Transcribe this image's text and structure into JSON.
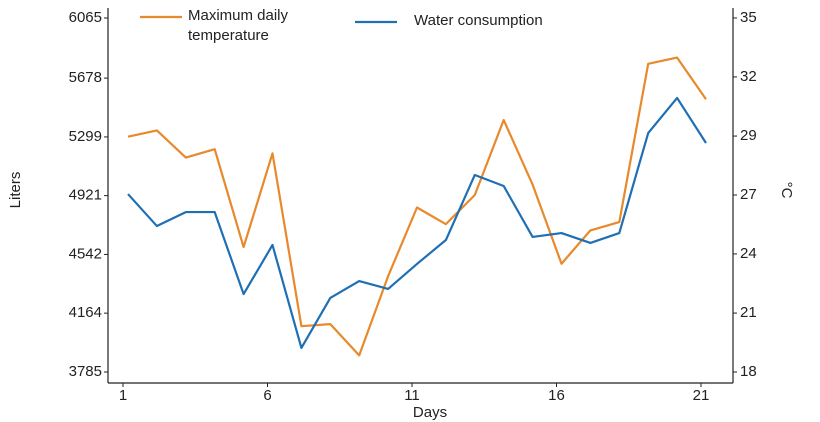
{
  "chart_data": {
    "type": "line",
    "x_label": "Days",
    "y_label": "Liters",
    "y2_label": "°C",
    "x": [
      1,
      2,
      3,
      4,
      5,
      6,
      7,
      8,
      9,
      10,
      11,
      12,
      13,
      14,
      15,
      16,
      17,
      18,
      19,
      20,
      21
    ],
    "xlim": [
      1,
      21
    ],
    "xticks": [
      1,
      6,
      11,
      16,
      21
    ],
    "ylim": [
      3785,
      6065
    ],
    "yticks": [
      3785,
      4164,
      4542,
      4921,
      5299,
      5678,
      6065
    ],
    "y2lim": [
      18,
      35
    ],
    "y2ticks": [
      18,
      {
        "value": 20.83,
        "label": "21"
      },
      {
        "value": 23.67,
        "label": "24"
      },
      {
        "value": 26.5,
        "label": "27"
      },
      {
        "value": 29.33,
        "label": "29"
      },
      {
        "value": 32.17,
        "label": "32"
      },
      35
    ],
    "grid": false,
    "series": [
      {
        "name": "Maximum daily temperature",
        "color": "#e8892b",
        "axis": "y2",
        "values": [
          29.3,
          29.6,
          28.3,
          28.7,
          24.0,
          28.5,
          20.2,
          20.3,
          18.8,
          22.6,
          25.9,
          25.1,
          26.5,
          30.1,
          27.0,
          23.2,
          24.8,
          25.2,
          32.8,
          33.1,
          31.1
        ]
      },
      {
        "name": "Water consumption",
        "color": "#1f6fb4",
        "values": [
          4931,
          4725,
          4815,
          4815,
          4287,
          4603,
          3940,
          4262,
          4371,
          4320,
          4481,
          4635,
          5054,
          4983,
          4655,
          4680,
          4616,
          4680,
          5324,
          5550,
          5260
        ]
      }
    ]
  }
}
